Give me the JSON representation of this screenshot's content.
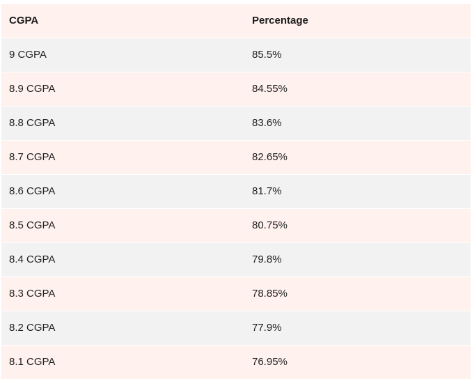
{
  "table": {
    "headers": [
      "CGPA",
      "Percentage"
    ],
    "rows": [
      [
        "9 CGPA",
        "85.5%"
      ],
      [
        "8.9 CGPA",
        "84.55%"
      ],
      [
        "8.8 CGPA",
        "83.6%"
      ],
      [
        "8.7 CGPA",
        "82.65%"
      ],
      [
        "8.6 CGPA",
        "81.7%"
      ],
      [
        "8.5 CGPA",
        "80.75%"
      ],
      [
        "8.4 CGPA",
        "79.8%"
      ],
      [
        "8.3 CGPA",
        "78.85%"
      ],
      [
        "8.2 CGPA",
        "77.9%"
      ],
      [
        "8.1 CGPA",
        "76.95%"
      ]
    ]
  },
  "colors": {
    "row_gray": "#f2f2f2",
    "row_pink": "#fff1ee"
  }
}
